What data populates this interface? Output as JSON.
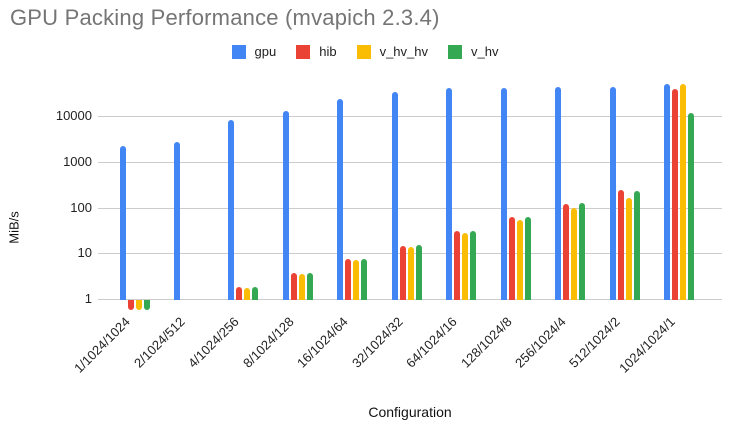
{
  "title": "GPU Packing Performance (mvapich 2.3.4)",
  "colors": {
    "grid": "#cccccc",
    "title_text": "#757575",
    "tick_text": "#222222"
  },
  "chart_data": {
    "type": "bar",
    "title": "GPU Packing Performance (mvapich 2.3.4)",
    "xlabel": "Configuration",
    "ylabel": "MiB/s",
    "y_scale": "log",
    "ylim": [
      1,
      83000
    ],
    "y_ticks": [
      1,
      10,
      100,
      1000,
      10000
    ],
    "grid": true,
    "legend_position": "top",
    "categories": [
      "1/1024/1024",
      "2/1024/512",
      "4/1024/256",
      "8/1024/128",
      "16/1024/64",
      "32/1024/32",
      "64/1024/16",
      "128/1024/8",
      "256/1024/4",
      "512/1024/2",
      "1024/1024/1"
    ],
    "series": [
      {
        "name": "gpu",
        "color": "#4285F4",
        "values": [
          2300,
          2800,
          8800,
          13800,
          25000,
          35000,
          43500,
          44500,
          46500,
          45000,
          52000
        ]
      },
      {
        "name": "hib",
        "color": "#EA4335",
        "values": [
          0.6,
          null,
          1.9,
          3.9,
          7.8,
          15.5,
          32,
          64,
          125,
          250,
          42000
        ]
      },
      {
        "name": "v_hv_hv",
        "color": "#FBBC04",
        "values": [
          0.6,
          null,
          1.85,
          3.8,
          7.5,
          14.5,
          29,
          56,
          105,
          175,
          53000
        ]
      },
      {
        "name": "v_hv",
        "color": "#34A853",
        "values": [
          0.6,
          null,
          1.95,
          3.9,
          7.8,
          15.8,
          32,
          64,
          130,
          240,
          12500
        ]
      }
    ]
  }
}
